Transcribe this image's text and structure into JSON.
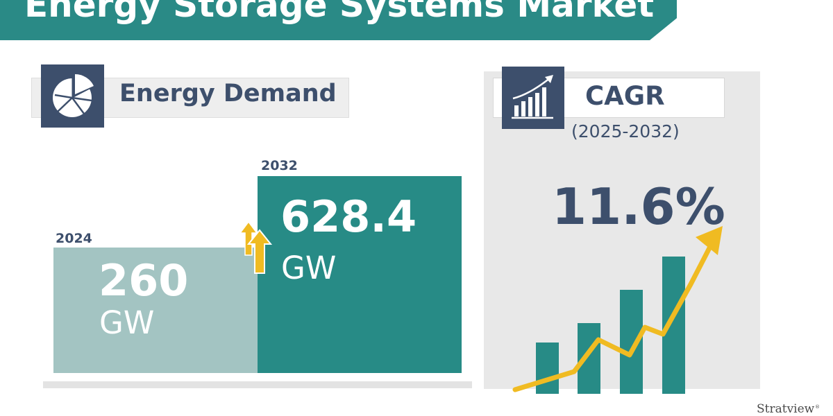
{
  "title": "Energy Storage Systems Market",
  "energy_demand": {
    "label": "Energy Demand",
    "icon": "pie-chart-icon"
  },
  "cagr": {
    "label": "CAGR",
    "period": "(2025-2032)",
    "value": "11.6%",
    "icon": "bar-chart-growth-icon"
  },
  "chart_data": {
    "type": "bar",
    "categories": [
      "2024",
      "2032"
    ],
    "values": [
      260,
      628.4
    ],
    "value_labels": [
      "260",
      "628.4"
    ],
    "unit": "GW",
    "colors": [
      "#a3c4c2",
      "#278b86"
    ]
  },
  "colors": {
    "primary_teal": "#2a8a86",
    "navy": "#3d4f6c",
    "accent_yellow": "#f0bb22",
    "light_teal": "#a3c4c2"
  },
  "logo": {
    "text": "Stratview",
    "reg": "®"
  }
}
